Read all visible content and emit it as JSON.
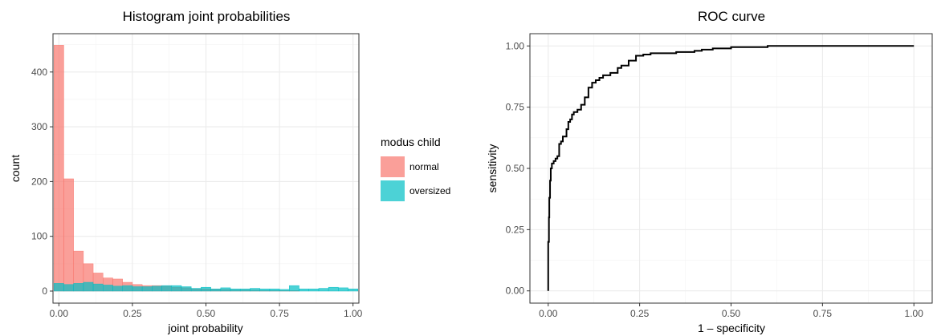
{
  "chart_data": [
    {
      "type": "histogram",
      "title": "Histogram joint probabilities",
      "xlabel": "joint probability",
      "ylabel": "count",
      "xlim": [
        -0.02,
        1.02
      ],
      "ylim": [
        -22,
        470
      ],
      "x_ticks": [
        0,
        0.25,
        0.5,
        0.75,
        1
      ],
      "x_tick_labels": [
        "0.00",
        "0.25",
        "0.50",
        "0.75",
        "1.00"
      ],
      "y_ticks": [
        0,
        100,
        200,
        300,
        400
      ],
      "y_tick_labels": [
        "0",
        "100",
        "200",
        "300",
        "400"
      ],
      "grid": true,
      "bin_width": 0.0333,
      "x": [
        0,
        0.0333,
        0.0667,
        0.1,
        0.1333,
        0.1667,
        0.2,
        0.2333,
        0.2667,
        0.3,
        0.3333,
        0.3667,
        0.4,
        0.4333,
        0.4667,
        0.5,
        0.5333,
        0.5667,
        0.6,
        0.6333,
        0.6667,
        0.7,
        0.7333,
        0.7667,
        0.8,
        0.8333,
        0.8667,
        0.9,
        0.9333,
        0.9667,
        1
      ],
      "series": [
        {
          "name": "normal",
          "color": "#F8766D",
          "values": [
            449,
            205,
            73,
            50,
            33,
            24,
            22,
            16,
            12,
            10,
            10,
            9,
            7,
            6,
            4,
            4,
            3,
            3,
            2,
            2,
            2,
            1,
            1,
            1,
            1,
            0,
            0,
            0,
            0,
            0,
            0
          ]
        },
        {
          "name": "oversized",
          "color": "#00BFC4",
          "values": [
            14,
            12,
            14,
            16,
            13,
            11,
            9,
            10,
            8,
            8,
            9,
            10,
            10,
            8,
            5,
            7,
            4,
            6,
            4,
            4,
            5,
            4,
            4,
            3,
            10,
            4,
            4,
            5,
            7,
            6,
            4
          ]
        }
      ],
      "legend": {
        "title": "modus child",
        "position": "right",
        "items": [
          "normal",
          "oversized"
        ]
      }
    },
    {
      "type": "line",
      "title": "ROC curve",
      "xlabel": "1 – specificity",
      "ylabel": "sensitivity",
      "xlim": [
        -0.05,
        1.05
      ],
      "ylim": [
        -0.05,
        1.05
      ],
      "x_ticks": [
        0,
        0.25,
        0.5,
        0.75,
        1
      ],
      "x_tick_labels": [
        "0.00",
        "0.25",
        "0.50",
        "0.75",
        "1.00"
      ],
      "y_ticks": [
        0,
        0.25,
        0.5,
        0.75,
        1
      ],
      "y_tick_labels": [
        "0.00",
        "0.25",
        "0.50",
        "0.75",
        "1.00"
      ],
      "grid": true,
      "color": "#000000",
      "x": [
        0,
        0,
        0.002,
        0.003,
        0.005,
        0.007,
        0.01,
        0.015,
        0.02,
        0.025,
        0.03,
        0.035,
        0.04,
        0.05,
        0.055,
        0.06,
        0.065,
        0.07,
        0.075,
        0.08,
        0.09,
        0.1,
        0.11,
        0.12,
        0.13,
        0.14,
        0.15,
        0.17,
        0.19,
        0.2,
        0.22,
        0.24,
        0.26,
        0.28,
        0.3,
        0.35,
        0.4,
        0.42,
        0.45,
        0.5,
        0.55,
        0.6,
        0.7,
        0.8,
        0.9,
        1
      ],
      "y": [
        0,
        0.2,
        0.3,
        0.38,
        0.45,
        0.5,
        0.52,
        0.53,
        0.54,
        0.55,
        0.6,
        0.61,
        0.63,
        0.66,
        0.69,
        0.7,
        0.72,
        0.73,
        0.73,
        0.74,
        0.76,
        0.79,
        0.83,
        0.85,
        0.86,
        0.87,
        0.88,
        0.89,
        0.91,
        0.92,
        0.94,
        0.96,
        0.965,
        0.97,
        0.97,
        0.975,
        0.98,
        0.985,
        0.99,
        0.995,
        0.995,
        1,
        1,
        1,
        1,
        1
      ]
    }
  ]
}
